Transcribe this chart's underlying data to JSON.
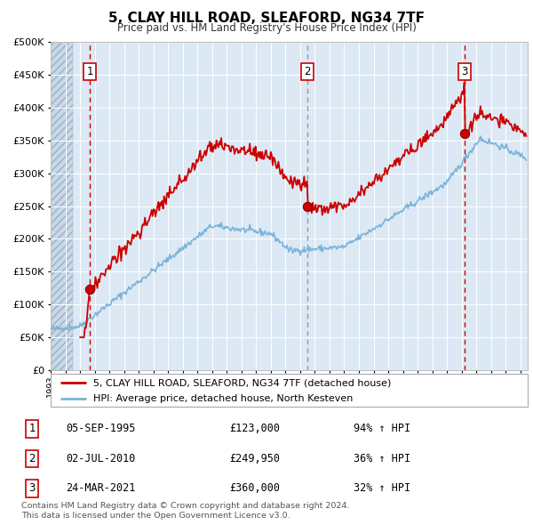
{
  "title": "5, CLAY HILL ROAD, SLEAFORD, NG34 7TF",
  "subtitle": "Price paid vs. HM Land Registry's House Price Index (HPI)",
  "legend_line1": "5, CLAY HILL ROAD, SLEAFORD, NG34 7TF (detached house)",
  "legend_line2": "HPI: Average price, detached house, North Kesteven",
  "footnote1": "Contains HM Land Registry data © Crown copyright and database right 2024.",
  "footnote2": "This data is licensed under the Open Government Licence v3.0.",
  "transactions": [
    {
      "num": 1,
      "date": "05-SEP-1995",
      "price": 123000,
      "price_str": "£123,000",
      "pct": "94%",
      "dir": "↑",
      "year": 1995.67
    },
    {
      "num": 2,
      "date": "02-JUL-2010",
      "price": 249950,
      "price_str": "£249,950",
      "pct": "36%",
      "dir": "↑",
      "year": 2010.5
    },
    {
      "num": 3,
      "date": "24-MAR-2021",
      "price": 360000,
      "price_str": "£360,000",
      "pct": "32%",
      "dir": "↑",
      "year": 2021.22
    }
  ],
  "hpi_color": "#7ab3d9",
  "price_color": "#cc0000",
  "bg_color": "#dce9f5",
  "grid_color": "#ffffff",
  "ylim": [
    0,
    500000
  ],
  "xlim_start": 1993.0,
  "xlim_end": 2025.5,
  "yticks": [
    0,
    50000,
    100000,
    150000,
    200000,
    250000,
    300000,
    350000,
    400000,
    450000,
    500000
  ],
  "xticks": [
    1993,
    1994,
    1995,
    1996,
    1997,
    1998,
    1999,
    2000,
    2001,
    2002,
    2003,
    2004,
    2005,
    2006,
    2007,
    2008,
    2009,
    2010,
    2011,
    2012,
    2013,
    2014,
    2015,
    2016,
    2017,
    2018,
    2019,
    2020,
    2021,
    2022,
    2023,
    2024,
    2025
  ]
}
